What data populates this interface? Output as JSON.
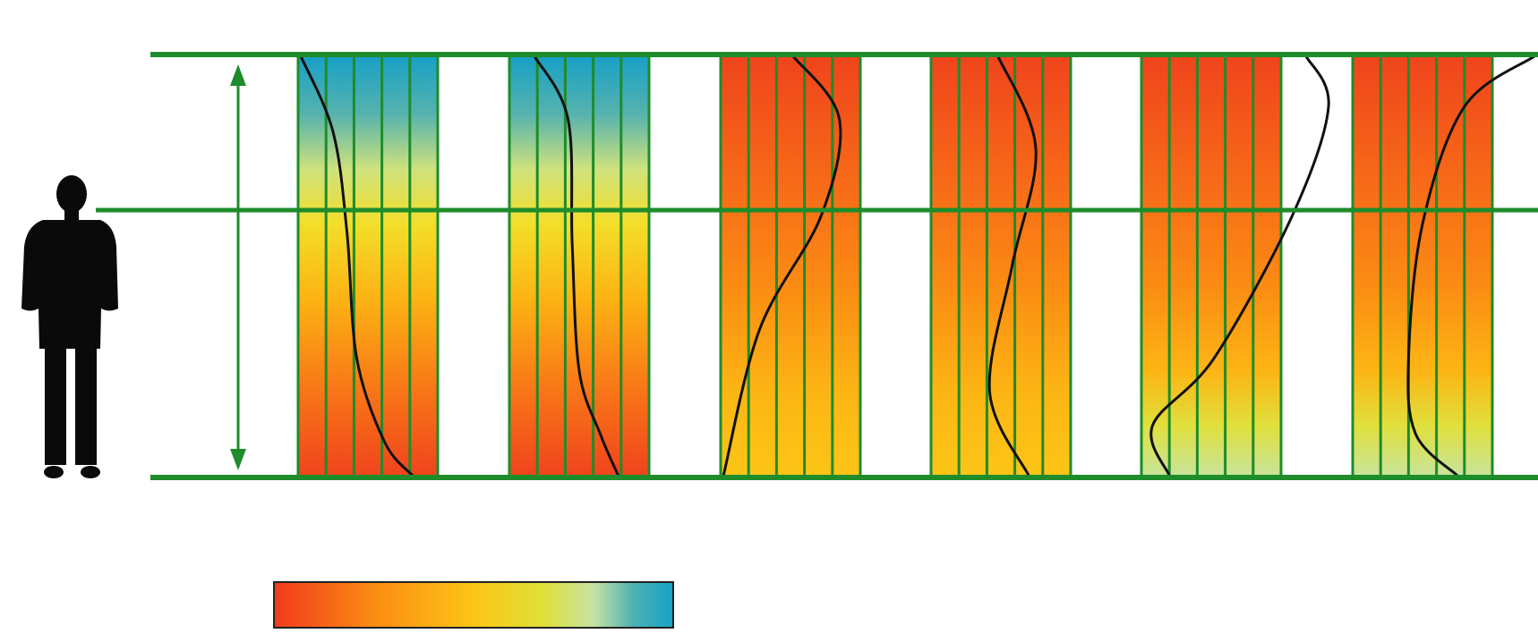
{
  "colors": {
    "frame_green": "#1e8c2a",
    "arrow_green": "#1e8c2a",
    "curve": "#111111",
    "silhouette": "#0a0a0a",
    "scale_red": "#f03a1c",
    "scale_orange": "#fb8c13",
    "scale_yellow": "#fcc516",
    "scale_lime": "#dfe036",
    "scale_pale": "#c6e2a2",
    "scale_teal": "#14a2c4"
  },
  "panels": [
    {
      "id": "panel-1",
      "gradient": [
        {
          "t": 0.0,
          "c": "#17a0c6"
        },
        {
          "t": 0.14,
          "c": "#58b3ad"
        },
        {
          "t": 0.27,
          "c": "#cfe27c"
        },
        {
          "t": 0.4,
          "c": "#f3de2a"
        },
        {
          "t": 0.57,
          "c": "#fcb514"
        },
        {
          "t": 0.78,
          "c": "#f97a17"
        },
        {
          "t": 1.0,
          "c": "#f0441c"
        }
      ],
      "profile": [
        [
          0.02,
          0.0
        ],
        [
          0.25,
          0.18
        ],
        [
          0.35,
          0.42
        ],
        [
          0.42,
          0.72
        ],
        [
          0.62,
          0.92
        ],
        [
          0.82,
          1.0
        ]
      ]
    },
    {
      "id": "panel-2",
      "gradient": [
        {
          "t": 0.0,
          "c": "#17a0c6"
        },
        {
          "t": 0.14,
          "c": "#58b3ad"
        },
        {
          "t": 0.27,
          "c": "#cfe27c"
        },
        {
          "t": 0.4,
          "c": "#f3de2a"
        },
        {
          "t": 0.57,
          "c": "#fcb514"
        },
        {
          "t": 0.78,
          "c": "#f97a17"
        },
        {
          "t": 1.0,
          "c": "#f0441c"
        }
      ],
      "profile": [
        [
          0.18,
          0.0
        ],
        [
          0.42,
          0.15
        ],
        [
          0.45,
          0.45
        ],
        [
          0.5,
          0.75
        ],
        [
          0.65,
          0.9
        ],
        [
          0.78,
          1.0
        ]
      ]
    },
    {
      "id": "panel-3",
      "gradient": [
        {
          "t": 0.0,
          "c": "#f0441c"
        },
        {
          "t": 0.3,
          "c": "#f76a18"
        },
        {
          "t": 0.55,
          "c": "#fb8c13"
        },
        {
          "t": 0.8,
          "c": "#fcb514"
        },
        {
          "t": 1.0,
          "c": "#fcc516"
        }
      ],
      "profile": [
        [
          0.52,
          0.0
        ],
        [
          0.85,
          0.15
        ],
        [
          0.72,
          0.38
        ],
        [
          0.28,
          0.65
        ],
        [
          0.02,
          1.0
        ]
      ]
    },
    {
      "id": "panel-4",
      "gradient": [
        {
          "t": 0.0,
          "c": "#f0441c"
        },
        {
          "t": 0.3,
          "c": "#f76a18"
        },
        {
          "t": 0.55,
          "c": "#fb8c13"
        },
        {
          "t": 0.8,
          "c": "#fcb514"
        },
        {
          "t": 1.0,
          "c": "#fcc516"
        }
      ],
      "profile": [
        [
          0.48,
          0.0
        ],
        [
          0.75,
          0.22
        ],
        [
          0.58,
          0.5
        ],
        [
          0.42,
          0.8
        ],
        [
          0.7,
          1.0
        ]
      ]
    },
    {
      "id": "panel-5",
      "gradient": [
        {
          "t": 0.0,
          "c": "#f0441c"
        },
        {
          "t": 0.3,
          "c": "#f76a18"
        },
        {
          "t": 0.55,
          "c": "#fb8c13"
        },
        {
          "t": 0.75,
          "c": "#fcb514"
        },
        {
          "t": 0.88,
          "c": "#e0df3c"
        },
        {
          "t": 1.0,
          "c": "#c8e49a"
        }
      ],
      "profile": [
        [
          1.18,
          0.0
        ],
        [
          1.34,
          0.12
        ],
        [
          1.08,
          0.38
        ],
        [
          0.52,
          0.72
        ],
        [
          0.08,
          0.88
        ],
        [
          0.2,
          1.0
        ]
      ]
    },
    {
      "id": "panel-6",
      "gradient": [
        {
          "t": 0.0,
          "c": "#f0441c"
        },
        {
          "t": 0.3,
          "c": "#f76a18"
        },
        {
          "t": 0.55,
          "c": "#fb8c13"
        },
        {
          "t": 0.75,
          "c": "#fcb514"
        },
        {
          "t": 0.88,
          "c": "#e0df3c"
        },
        {
          "t": 1.0,
          "c": "#c8e49a"
        }
      ],
      "profile": [
        [
          1.3,
          0.0
        ],
        [
          0.8,
          0.12
        ],
        [
          0.5,
          0.4
        ],
        [
          0.4,
          0.72
        ],
        [
          0.45,
          0.9
        ],
        [
          0.75,
          1.0
        ]
      ]
    }
  ],
  "color_scale": {
    "stops": [
      {
        "t": 0.0,
        "c": "#f03a1c"
      },
      {
        "t": 0.25,
        "c": "#fb8c13"
      },
      {
        "t": 0.5,
        "c": "#fcc516"
      },
      {
        "t": 0.67,
        "c": "#dfe036"
      },
      {
        "t": 0.8,
        "c": "#c6e2a2"
      },
      {
        "t": 0.9,
        "c": "#4fb2b3"
      },
      {
        "t": 1.0,
        "c": "#14a2c4"
      }
    ]
  }
}
